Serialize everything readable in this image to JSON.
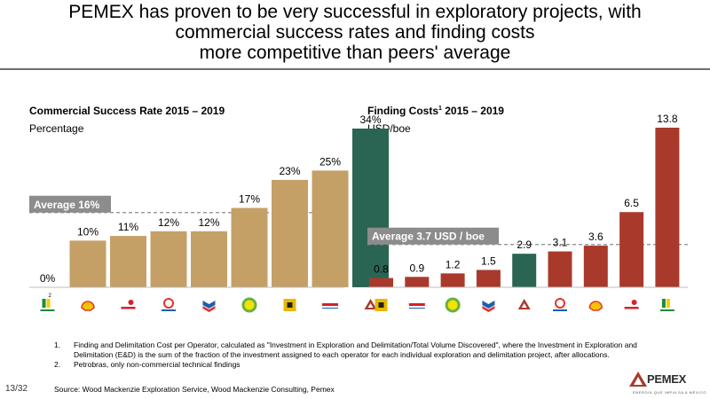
{
  "title_lines": [
    "PEMEX has proven to be very successful in exploratory projects, with",
    "commercial success rates and finding costs",
    "more competitive than peers' average"
  ],
  "chart_data": [
    {
      "type": "bar",
      "title": "Commercial Success Rate 2015 – 2019",
      "subtitle": "Percentage",
      "categories": [
        "Petrobras",
        "Shell",
        "Equinor",
        "Total",
        "Chevron",
        "BP",
        "ENI",
        "ExxonMobil",
        "PEMEX"
      ],
      "values": [
        0,
        10,
        11,
        12,
        12,
        17,
        23,
        25,
        34
      ],
      "value_labels": [
        "0%",
        "10%",
        "11%",
        "12%",
        "12%",
        "17%",
        "23%",
        "25%",
        "34%"
      ],
      "category_superscripts": [
        "2",
        "",
        "",
        "",
        "",
        "",
        "",
        "",
        ""
      ],
      "average": 16,
      "average_label": "Average 16%",
      "ylim": [
        0,
        34
      ],
      "bar_color": "#c4a067",
      "highlight_color": "#2a6553",
      "highlight_index": 8
    },
    {
      "type": "bar",
      "title": "Finding Costs",
      "title_superscript": "1",
      "title_suffix": " 2015 – 2019",
      "subtitle": "USD/boe",
      "categories": [
        "ENI",
        "ExxonMobil",
        "BP",
        "Chevron",
        "PEMEX",
        "Total",
        "Shell",
        "Equinor",
        "Petrobras"
      ],
      "values": [
        0.8,
        0.9,
        1.2,
        1.5,
        2.9,
        3.1,
        3.6,
        6.5,
        13.8
      ],
      "value_labels": [
        "0.8",
        "0.9",
        "1.2",
        "1.5",
        "2.9",
        "3.1",
        "3.6",
        "6.5",
        "13.8"
      ],
      "average": 3.7,
      "average_label": "Average 3.7 USD / boe",
      "ylim": [
        0,
        13.8
      ],
      "bar_color": "#a93a2b",
      "highlight_color": "#2a6553",
      "highlight_index": 4
    }
  ],
  "footnotes": [
    {
      "num": "1.",
      "text": "Finding and Delimitation Cost per Operator, calculated as \"Investment in Exploration and Delimitation/Total Volume Discovered\", where the Investment in Exploration and Delimitation (E&D) is the sum of the fraction of the investment assigned to each operator for each individual exploration and delimitation project, after allocations."
    },
    {
      "num": "2.",
      "text": "Petrobras, only non-commercial technical findings"
    }
  ],
  "source": "Source: Wood Mackenzie Exploration Service, Wood Mackenzie Consulting, Pemex",
  "page_number": "13/32",
  "brand": {
    "name": "PEMEX",
    "tagline": "ENERGÍA QUE IMPULSA A MÉXICO",
    "color": "#a93a2b"
  },
  "logo_colors": {
    "Petrobras": "#1f8a3c",
    "Shell": "#e03a2f",
    "Equinor": "#d8202f",
    "Total": "#e4342c",
    "Chevron": "#1b5fae",
    "BP": "#69b040",
    "ENI": "#e8b900",
    "ExxonMobil": "#d6202a",
    "PEMEX": "#a93a2b"
  }
}
